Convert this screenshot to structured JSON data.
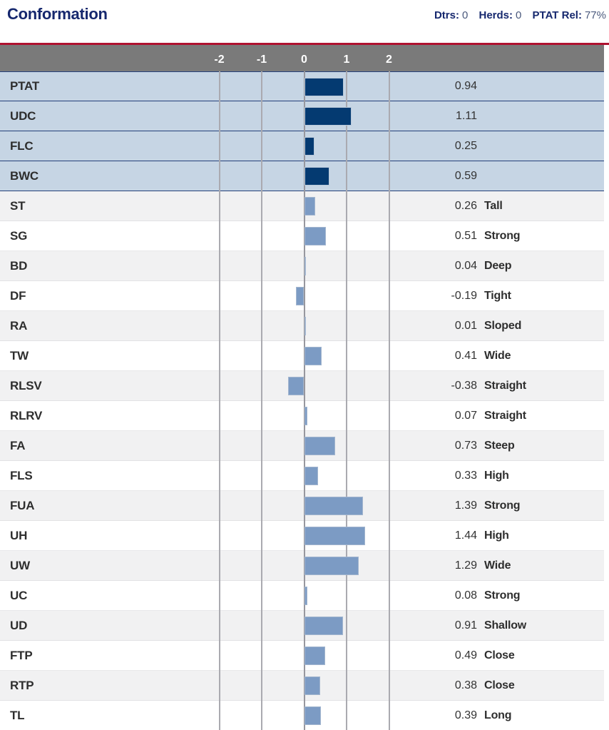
{
  "header": {
    "title": "Conformation",
    "meta": [
      {
        "label": "Dtrs:",
        "value": "0"
      },
      {
        "label": "Herds:",
        "value": "0"
      },
      {
        "label": "PTAT Rel:",
        "value": "77%"
      }
    ]
  },
  "colors": {
    "title_navy": "#16286e",
    "accent_red": "#b01230",
    "axis_band_gray": "#7a7a7a",
    "highlight_row_bg": "#c6d5e4",
    "highlight_bar": "#043a71",
    "linear_bar": "#7c9bc4",
    "alt_row_gray": "#f1f1f2"
  },
  "chart_data": {
    "type": "bar",
    "orientation": "horizontal",
    "title": "Conformation",
    "axis": {
      "ticks": [
        -2,
        -1,
        0,
        1,
        2
      ],
      "min": -2.5,
      "max": 2.5,
      "grid": true
    },
    "rows": [
      {
        "trait": "PTAT",
        "value": 0.94,
        "descriptor": "",
        "emphasis": true
      },
      {
        "trait": "UDC",
        "value": 1.11,
        "descriptor": "",
        "emphasis": true
      },
      {
        "trait": "FLC",
        "value": 0.25,
        "descriptor": "",
        "emphasis": true
      },
      {
        "trait": "BWC",
        "value": 0.59,
        "descriptor": "",
        "emphasis": true
      },
      {
        "trait": "ST",
        "value": 0.26,
        "descriptor": "Tall",
        "emphasis": false
      },
      {
        "trait": "SG",
        "value": 0.51,
        "descriptor": "Strong",
        "emphasis": false
      },
      {
        "trait": "BD",
        "value": 0.04,
        "descriptor": "Deep",
        "emphasis": false
      },
      {
        "trait": "DF",
        "value": -0.19,
        "descriptor": "Tight",
        "emphasis": false
      },
      {
        "trait": "RA",
        "value": 0.01,
        "descriptor": "Sloped",
        "emphasis": false
      },
      {
        "trait": "TW",
        "value": 0.41,
        "descriptor": "Wide",
        "emphasis": false
      },
      {
        "trait": "RLSV",
        "value": -0.38,
        "descriptor": "Straight",
        "emphasis": false
      },
      {
        "trait": "RLRV",
        "value": 0.07,
        "descriptor": "Straight",
        "emphasis": false
      },
      {
        "trait": "FA",
        "value": 0.73,
        "descriptor": "Steep",
        "emphasis": false
      },
      {
        "trait": "FLS",
        "value": 0.33,
        "descriptor": "High",
        "emphasis": false
      },
      {
        "trait": "FUA",
        "value": 1.39,
        "descriptor": "Strong",
        "emphasis": false
      },
      {
        "trait": "UH",
        "value": 1.44,
        "descriptor": "High",
        "emphasis": false
      },
      {
        "trait": "UW",
        "value": 1.29,
        "descriptor": "Wide",
        "emphasis": false
      },
      {
        "trait": "UC",
        "value": 0.08,
        "descriptor": "Strong",
        "emphasis": false
      },
      {
        "trait": "UD",
        "value": 0.91,
        "descriptor": "Shallow",
        "emphasis": false
      },
      {
        "trait": "FTP",
        "value": 0.49,
        "descriptor": "Close",
        "emphasis": false
      },
      {
        "trait": "RTP",
        "value": 0.38,
        "descriptor": "Close",
        "emphasis": false
      },
      {
        "trait": "TL",
        "value": 0.39,
        "descriptor": "Long",
        "emphasis": false
      }
    ]
  }
}
